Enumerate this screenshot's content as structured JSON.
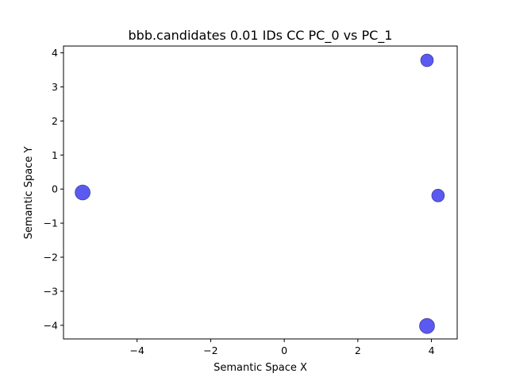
{
  "chart_data": {
    "type": "scatter",
    "title": "bbb.candidates 0.01 IDs CC PC_0 vs PC_1",
    "xlabel": "Semantic Space X",
    "ylabel": "Semantic Space Y",
    "xlim": [
      -6.0,
      4.7
    ],
    "ylim": [
      -4.4,
      4.2
    ],
    "xticks": [
      -4,
      -2,
      0,
      2,
      4
    ],
    "yticks": [
      -4,
      -3,
      -2,
      -1,
      0,
      1,
      2,
      3,
      4
    ],
    "xtick_labels": [
      "−4",
      "−2",
      "0",
      "2",
      "4"
    ],
    "ytick_labels": [
      "−4",
      "−3",
      "−2",
      "−1",
      "0",
      "1",
      "2",
      "3",
      "4"
    ],
    "grid": false,
    "legend": "none",
    "points": [
      {
        "x": 3.88,
        "y": 3.78,
        "size": 1
      },
      {
        "x": -5.48,
        "y": -0.1,
        "size": 2
      },
      {
        "x": 4.18,
        "y": -0.19,
        "size": 1
      },
      {
        "x": 3.88,
        "y": -4.02,
        "size": 2
      }
    ],
    "marker_color": "#5a5af0",
    "marker_edge_color": "#2a2a8a"
  }
}
